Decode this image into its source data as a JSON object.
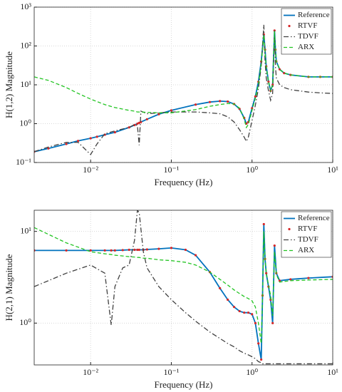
{
  "chart_data": [
    {
      "type": "line",
      "xlabel": "Frequency (Hz)",
      "ylabel": "H(1,2) Magnitude",
      "xscale": "log",
      "yscale": "log",
      "grid": true,
      "legend": "upper right",
      "xlim": [
        0.002,
        10
      ],
      "ylim": [
        0.1,
        1000
      ],
      "xticks": [
        {
          "value": 0.01,
          "label": "10⁻²"
        },
        {
          "value": 0.1,
          "label": "10⁻¹"
        },
        {
          "value": 1,
          "label": "10⁰"
        },
        {
          "value": 10,
          "label": "10¹"
        }
      ],
      "yticks": [
        {
          "value": 0.1,
          "label": "10⁻¹"
        },
        {
          "value": 1,
          "label": "10⁰"
        },
        {
          "value": 10,
          "label": "10¹"
        },
        {
          "value": 100,
          "label": "10²"
        },
        {
          "value": 1000,
          "label": "10³"
        }
      ],
      "x": [
        0.002,
        0.003,
        0.005,
        0.007,
        0.01,
        0.012,
        0.015,
        0.02,
        0.03,
        0.035,
        0.038,
        0.04,
        0.042,
        0.05,
        0.07,
        0.1,
        0.2,
        0.3,
        0.4,
        0.5,
        0.6,
        0.7,
        0.8,
        0.85,
        0.9,
        1.0,
        1.1,
        1.2,
        1.3,
        1.4,
        1.45,
        1.5,
        1.6,
        1.7,
        1.8,
        1.9,
        1.95,
        2.0,
        2.2,
        2.5,
        3,
        5,
        7,
        10
      ],
      "series": [
        {
          "name": "Reference",
          "color": "#0072bd",
          "style": "solid",
          "values": [
            0.19,
            0.23,
            0.3,
            0.36,
            0.42,
            0.46,
            0.52,
            0.6,
            0.8,
            0.92,
            1.0,
            1.05,
            1.1,
            1.3,
            1.75,
            2.2,
            3.1,
            3.6,
            3.8,
            3.7,
            3.2,
            2.4,
            1.4,
            1.0,
            1.1,
            2.5,
            5,
            12,
            40,
            200,
            80,
            30,
            12,
            7,
            10,
            250,
            80,
            40,
            25,
            20,
            18,
            16,
            16,
            16
          ]
        },
        {
          "name": "RTVF",
          "color": "#d62728",
          "style": "dots",
          "values": [
            0.19,
            0.23,
            0.3,
            0.36,
            0.42,
            0.46,
            0.52,
            0.6,
            0.8,
            0.92,
            1.0,
            1.05,
            1.1,
            1.3,
            1.75,
            2.2,
            3.1,
            3.6,
            3.8,
            3.7,
            3.2,
            2.4,
            1.4,
            1.0,
            1.1,
            2.5,
            5,
            12,
            40,
            200,
            80,
            30,
            12,
            7,
            10,
            250,
            80,
            40,
            25,
            20,
            18,
            16,
            16,
            16
          ]
        },
        {
          "name": "TDVF",
          "color": "#404040",
          "style": "dashdot",
          "values": [
            0.19,
            0.25,
            0.33,
            0.33,
            0.16,
            0.3,
            0.55,
            0.65,
            0.8,
            0.95,
            0.9,
            0.28,
            2.1,
            1.8,
            1.9,
            2.0,
            2.0,
            1.9,
            1.8,
            1.5,
            1.1,
            0.7,
            0.45,
            0.35,
            0.45,
            1.2,
            3,
            8,
            30,
            350,
            40,
            15,
            7,
            4,
            6,
            250,
            30,
            15,
            10,
            8.5,
            7.5,
            6.5,
            6.2,
            6
          ]
        },
        {
          "name": "ARX",
          "color": "#22c422",
          "style": "dashed",
          "values": [
            16,
            13,
            8.5,
            6,
            4.3,
            3.7,
            3.1,
            2.6,
            2.2,
            2.1,
            2.0,
            2.0,
            2.0,
            1.95,
            1.9,
            1.9,
            2.3,
            2.8,
            3.1,
            3.3,
            3.2,
            2.5,
            1.3,
            0.8,
            0.95,
            2.2,
            4.5,
            10,
            35,
            190,
            70,
            28,
            12,
            7,
            10,
            240,
            80,
            40,
            25,
            20,
            18,
            16,
            16,
            16
          ]
        }
      ]
    },
    {
      "type": "line",
      "xlabel": "Frequency (Hz)",
      "ylabel": "H(2,1) Magnitude",
      "xscale": "log",
      "yscale": "log",
      "grid": true,
      "legend": "upper right",
      "xlim": [
        0.002,
        10
      ],
      "ylim": [
        0.35,
        17
      ],
      "xticks": [
        {
          "value": 0.01,
          "label": "10⁻²"
        },
        {
          "value": 0.1,
          "label": "10⁻¹"
        },
        {
          "value": 1,
          "label": "10⁰"
        },
        {
          "value": 10,
          "label": "10¹"
        }
      ],
      "yticks": [
        {
          "value": 1,
          "label": "10⁰"
        },
        {
          "value": 10,
          "label": "10¹"
        }
      ],
      "x": [
        0.002,
        0.005,
        0.01,
        0.015,
        0.018,
        0.02,
        0.025,
        0.03,
        0.035,
        0.038,
        0.04,
        0.045,
        0.05,
        0.07,
        0.1,
        0.15,
        0.2,
        0.3,
        0.4,
        0.5,
        0.6,
        0.7,
        0.8,
        0.9,
        1.0,
        1.1,
        1.2,
        1.3,
        1.35,
        1.4,
        1.45,
        1.5,
        1.6,
        1.7,
        1.8,
        1.9,
        2.0,
        2.2,
        3,
        5,
        10
      ],
      "series": [
        {
          "name": "Reference",
          "color": "#0072bd",
          "style": "solid",
          "values": [
            6.2,
            6.2,
            6.2,
            6.2,
            6.2,
            6.2,
            6.25,
            6.3,
            6.3,
            6.3,
            6.3,
            6.3,
            6.35,
            6.45,
            6.6,
            6.3,
            5.5,
            3.6,
            2.4,
            1.8,
            1.5,
            1.35,
            1.3,
            1.3,
            1.25,
            1.0,
            0.6,
            0.4,
            2,
            12,
            5,
            3.5,
            2.5,
            1.8,
            1.0,
            7,
            3.5,
            2.9,
            3.0,
            3.1,
            3.2
          ]
        },
        {
          "name": "RTVF",
          "color": "#d62728",
          "style": "dots",
          "values": [
            6.2,
            6.2,
            6.2,
            6.2,
            6.2,
            6.2,
            6.25,
            6.3,
            6.3,
            6.3,
            6.3,
            6.3,
            6.35,
            6.45,
            6.6,
            6.3,
            5.5,
            3.6,
            2.4,
            1.8,
            1.5,
            1.35,
            1.3,
            1.3,
            1.25,
            1.0,
            0.6,
            0.4,
            2,
            12,
            5,
            3.5,
            2.5,
            1.8,
            1.0,
            7,
            3.5,
            2.9,
            3.0,
            3.1,
            3.2
          ]
        },
        {
          "name": "TDVF",
          "color": "#404040",
          "style": "dashdot",
          "values": [
            2.5,
            3.5,
            4.3,
            3.5,
            0.95,
            2.5,
            4,
            4.3,
            8,
            17,
            16,
            6,
            4,
            2.5,
            1.8,
            1.3,
            1.05,
            0.8,
            0.68,
            0.6,
            0.55,
            0.5,
            0.47,
            0.45,
            0.43,
            0.41,
            0.38,
            0.37,
            0.36,
            0.36,
            0.36,
            0.36,
            0.36,
            0.36,
            0.36,
            0.36,
            0.36,
            0.36,
            0.36,
            0.36,
            0.36
          ]
        },
        {
          "name": "ARX",
          "color": "#22c422",
          "style": "dashed",
          "values": [
            11,
            7.5,
            6,
            5.7,
            5.6,
            5.5,
            5.4,
            5.3,
            5.25,
            5.2,
            5.2,
            5.1,
            5.1,
            4.9,
            4.8,
            4.6,
            4.3,
            3.6,
            3.0,
            2.6,
            2.3,
            2.1,
            1.95,
            1.85,
            1.75,
            1.5,
            1.0,
            0.6,
            2,
            10,
            5,
            3.5,
            2.6,
            2.0,
            1.2,
            6,
            3.4,
            2.8,
            2.9,
            2.95,
            3.0
          ]
        }
      ]
    }
  ]
}
